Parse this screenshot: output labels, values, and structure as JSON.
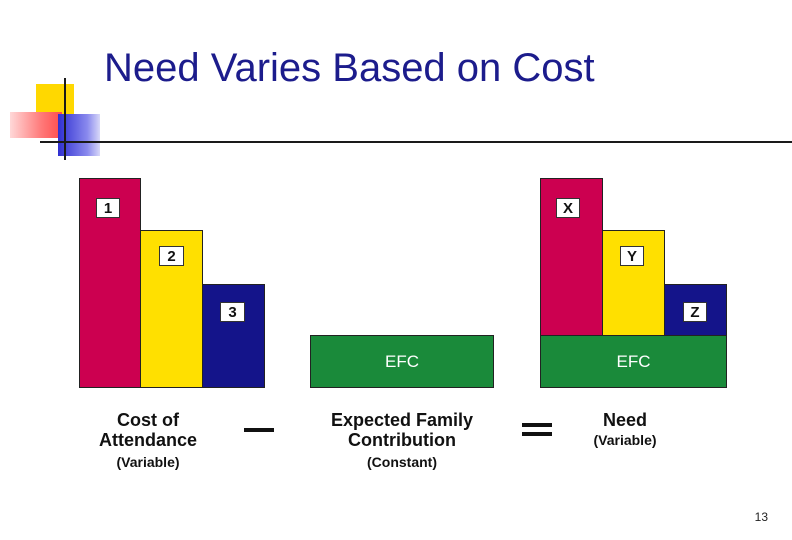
{
  "slide": {
    "title": "Need Varies Based on Cost",
    "page_number": "13"
  },
  "colors": {
    "crimson": "#cc0050",
    "yellow": "#ffe000",
    "navy": "#14148a",
    "green": "#1a8a3a",
    "title": "#1c1c8c"
  },
  "left_group": {
    "labels": [
      "1",
      "2",
      "3"
    ],
    "caption_line1": "Cost of",
    "caption_line2": "Attendance",
    "sub": "(Variable)"
  },
  "middle_group": {
    "box_label": "EFC",
    "caption_line1": "Expected Family",
    "caption_line2": "Contribution",
    "sub": "(Constant)"
  },
  "right_group": {
    "labels": [
      "X",
      "Y",
      "Z"
    ],
    "efc_label": "EFC",
    "caption_line1": "Need",
    "sub": "(Variable)"
  }
}
